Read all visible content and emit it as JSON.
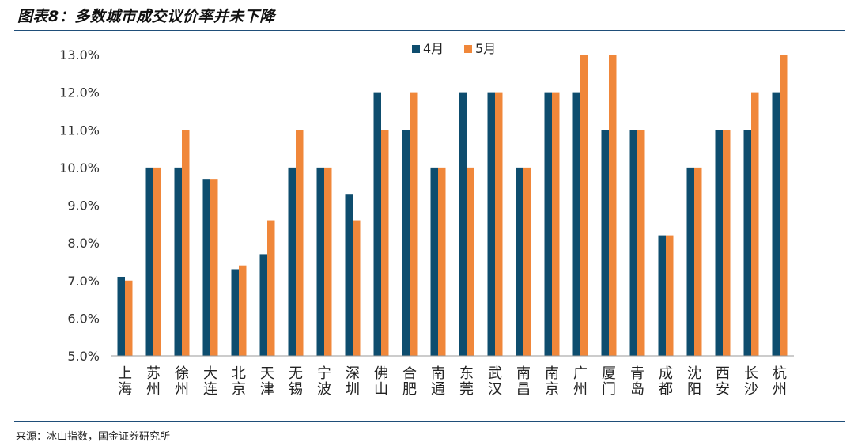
{
  "figure": {
    "title": "图表8：多数城市成交议价率并未下降",
    "source": "来源：冰山指数，国金证券研究所"
  },
  "chart_data": {
    "type": "bar",
    "categories": [
      "上海",
      "苏州",
      "徐州",
      "大连",
      "北京",
      "天津",
      "无锡",
      "宁波",
      "深圳",
      "佛山",
      "合肥",
      "南通",
      "东莞",
      "武汉",
      "南昌",
      "南京",
      "广州",
      "厦门",
      "青岛",
      "成都",
      "沈阳",
      "西安",
      "长沙",
      "杭州"
    ],
    "series": [
      {
        "name": "4月",
        "color": "#0e4d6e",
        "values": [
          7.1,
          10.0,
          10.0,
          9.7,
          7.3,
          7.7,
          10.0,
          10.0,
          9.3,
          12.0,
          11.0,
          10.0,
          12.0,
          12.0,
          10.0,
          12.0,
          12.0,
          11.0,
          11.0,
          8.2,
          10.0,
          11.0,
          11.0,
          12.0
        ]
      },
      {
        "name": "5月",
        "color": "#f0873a",
        "values": [
          7.0,
          10.0,
          11.0,
          9.7,
          7.4,
          8.6,
          11.0,
          10.0,
          8.6,
          11.0,
          12.0,
          10.0,
          10.0,
          12.0,
          10.0,
          12.0,
          13.0,
          13.0,
          11.0,
          8.2,
          10.0,
          11.0,
          12.0,
          13.0
        ]
      }
    ],
    "y_ticks": [
      "5.0%",
      "6.0%",
      "7.0%",
      "8.0%",
      "9.0%",
      "10.0%",
      "11.0%",
      "12.0%",
      "13.0%"
    ],
    "ylim": [
      5.0,
      13.0
    ],
    "grid": false,
    "legend_position": "top-center"
  }
}
